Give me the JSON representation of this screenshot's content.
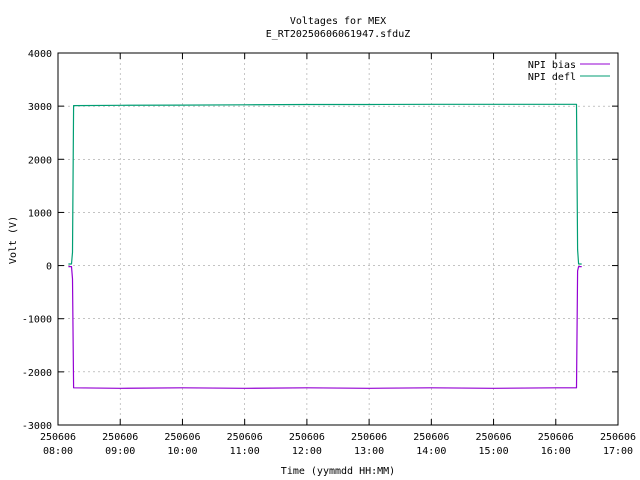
{
  "chart_data": {
    "type": "line",
    "title": "Voltages for MEX",
    "subtitle": "E_RT20250606061947.sfduZ",
    "xlabel": "Time (yymmdd HH:MM)",
    "ylabel": "Volt (V)",
    "xlim": [
      "250606 08:00",
      "250606 17:00"
    ],
    "ylim": [
      -3000,
      4000
    ],
    "grid": true,
    "legend_position": "top-right",
    "x_ticks": [
      {
        "value": "08:00",
        "line1": "250606",
        "line2": "08:00"
      },
      {
        "value": "09:00",
        "line1": "250606",
        "line2": "09:00"
      },
      {
        "value": "10:00",
        "line1": "250606",
        "line2": "10:00"
      },
      {
        "value": "11:00",
        "line1": "250606",
        "line2": "11:00"
      },
      {
        "value": "12:00",
        "line1": "250606",
        "line2": "12:00"
      },
      {
        "value": "13:00",
        "line1": "250606",
        "line2": "13:00"
      },
      {
        "value": "14:00",
        "line1": "250606",
        "line2": "14:00"
      },
      {
        "value": "15:00",
        "line1": "250606",
        "line2": "15:00"
      },
      {
        "value": "16:00",
        "line1": "250606",
        "line2": "16:00"
      },
      {
        "value": "17:00",
        "line1": "250606",
        "line2": "17:00"
      }
    ],
    "y_ticks": [
      {
        "value": 4000,
        "label": "4000"
      },
      {
        "value": 3000,
        "label": "3000"
      },
      {
        "value": 2000,
        "label": "2000"
      },
      {
        "value": 1000,
        "label": "1000"
      },
      {
        "value": 0,
        "label": "0"
      },
      {
        "value": -1000,
        "label": "-1000"
      },
      {
        "value": -2000,
        "label": "-2000"
      },
      {
        "value": -3000,
        "label": "-3000"
      }
    ],
    "series": [
      {
        "name": "NPI bias",
        "color": "#9400d3",
        "points": [
          [
            "08:10",
            -20
          ],
          [
            "08:13",
            -20
          ],
          [
            "08:14",
            -250
          ],
          [
            "08:15",
            -2300
          ],
          [
            "09:00",
            -2310
          ],
          [
            "10:00",
            -2300
          ],
          [
            "11:00",
            -2310
          ],
          [
            "12:00",
            -2300
          ],
          [
            "13:00",
            -2310
          ],
          [
            "14:00",
            -2300
          ],
          [
            "15:00",
            -2310
          ],
          [
            "16:00",
            -2300
          ],
          [
            "16:20",
            -2300
          ],
          [
            "16:21",
            -100
          ],
          [
            "16:22",
            -20
          ],
          [
            "16:25",
            -20
          ]
        ]
      },
      {
        "name": "NPI defl",
        "color": "#009e73",
        "points": [
          [
            "08:10",
            30
          ],
          [
            "08:13",
            30
          ],
          [
            "08:14",
            250
          ],
          [
            "08:15",
            3010
          ],
          [
            "09:00",
            3015
          ],
          [
            "10:00",
            3020
          ],
          [
            "11:00",
            3025
          ],
          [
            "12:00",
            3030
          ],
          [
            "13:00",
            3030
          ],
          [
            "14:00",
            3035
          ],
          [
            "15:00",
            3035
          ],
          [
            "16:00",
            3035
          ],
          [
            "16:20",
            3035
          ],
          [
            "16:21",
            300
          ],
          [
            "16:22",
            30
          ],
          [
            "16:25",
            30
          ]
        ]
      }
    ]
  }
}
